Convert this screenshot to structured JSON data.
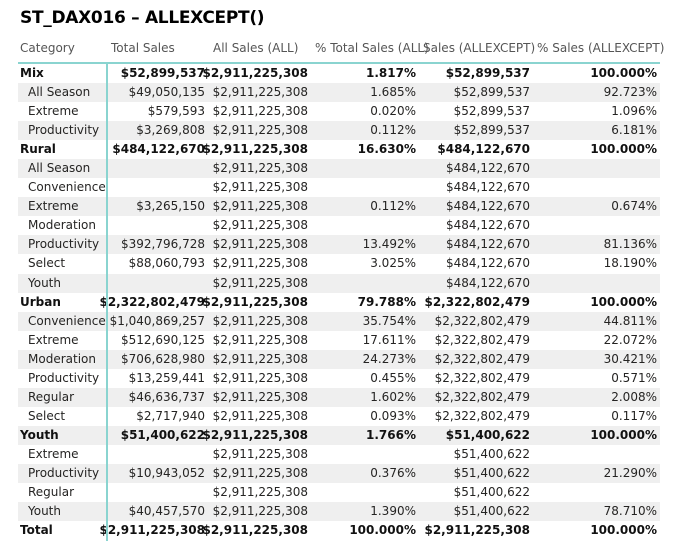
{
  "title": "ST_DAX016 – ALLEXCEPT()",
  "headers": [
    "Category",
    "Total Sales",
    "All Sales (ALL)",
    "% Total Sales (ALL)",
    "Sales (ALLEXCEPT)",
    "% Sales (ALLEXCEPT)"
  ],
  "accent_color": "#8ad4d0",
  "rows": [
    {
      "level": 0,
      "cells": [
        "Mix",
        "$52,899,537",
        "$2,911,225,308",
        "1.817%",
        "$52,899,537",
        "100.000%"
      ]
    },
    {
      "level": 1,
      "cells": [
        "All Season",
        "$49,050,135",
        "$2,911,225,308",
        "1.685%",
        "$52,899,537",
        "92.723%"
      ]
    },
    {
      "level": 1,
      "cells": [
        "Extreme",
        "$579,593",
        "$2,911,225,308",
        "0.020%",
        "$52,899,537",
        "1.096%"
      ]
    },
    {
      "level": 1,
      "cells": [
        "Productivity",
        "$3,269,808",
        "$2,911,225,308",
        "0.112%",
        "$52,899,537",
        "6.181%"
      ]
    },
    {
      "level": 0,
      "cells": [
        "Rural",
        "$484,122,670",
        "$2,911,225,308",
        "16.630%",
        "$484,122,670",
        "100.000%"
      ]
    },
    {
      "level": 1,
      "cells": [
        "All Season",
        "",
        "$2,911,225,308",
        "",
        "$484,122,670",
        ""
      ]
    },
    {
      "level": 1,
      "cells": [
        "Convenience",
        "",
        "$2,911,225,308",
        "",
        "$484,122,670",
        ""
      ]
    },
    {
      "level": 1,
      "cells": [
        "Extreme",
        "$3,265,150",
        "$2,911,225,308",
        "0.112%",
        "$484,122,670",
        "0.674%"
      ]
    },
    {
      "level": 1,
      "cells": [
        "Moderation",
        "",
        "$2,911,225,308",
        "",
        "$484,122,670",
        ""
      ]
    },
    {
      "level": 1,
      "cells": [
        "Productivity",
        "$392,796,728",
        "$2,911,225,308",
        "13.492%",
        "$484,122,670",
        "81.136%"
      ]
    },
    {
      "level": 1,
      "cells": [
        "Select",
        "$88,060,793",
        "$2,911,225,308",
        "3.025%",
        "$484,122,670",
        "18.190%"
      ]
    },
    {
      "level": 1,
      "cells": [
        "Youth",
        "",
        "$2,911,225,308",
        "",
        "$484,122,670",
        ""
      ]
    },
    {
      "level": 0,
      "cells": [
        "Urban",
        "$2,322,802,479",
        "$2,911,225,308",
        "79.788%",
        "$2,322,802,479",
        "100.000%"
      ]
    },
    {
      "level": 1,
      "cells": [
        "Convenience",
        "$1,040,869,257",
        "$2,911,225,308",
        "35.754%",
        "$2,322,802,479",
        "44.811%"
      ]
    },
    {
      "level": 1,
      "cells": [
        "Extreme",
        "$512,690,125",
        "$2,911,225,308",
        "17.611%",
        "$2,322,802,479",
        "22.072%"
      ]
    },
    {
      "level": 1,
      "cells": [
        "Moderation",
        "$706,628,980",
        "$2,911,225,308",
        "24.273%",
        "$2,322,802,479",
        "30.421%"
      ]
    },
    {
      "level": 1,
      "cells": [
        "Productivity",
        "$13,259,441",
        "$2,911,225,308",
        "0.455%",
        "$2,322,802,479",
        "0.571%"
      ]
    },
    {
      "level": 1,
      "cells": [
        "Regular",
        "$46,636,737",
        "$2,911,225,308",
        "1.602%",
        "$2,322,802,479",
        "2.008%"
      ]
    },
    {
      "level": 1,
      "cells": [
        "Select",
        "$2,717,940",
        "$2,911,225,308",
        "0.093%",
        "$2,322,802,479",
        "0.117%"
      ]
    },
    {
      "level": 0,
      "cells": [
        "Youth",
        "$51,400,622",
        "$2,911,225,308",
        "1.766%",
        "$51,400,622",
        "100.000%"
      ]
    },
    {
      "level": 1,
      "cells": [
        "Extreme",
        "",
        "$2,911,225,308",
        "",
        "$51,400,622",
        ""
      ]
    },
    {
      "level": 1,
      "cells": [
        "Productivity",
        "$10,943,052",
        "$2,911,225,308",
        "0.376%",
        "$51,400,622",
        "21.290%"
      ]
    },
    {
      "level": 1,
      "cells": [
        "Regular",
        "",
        "$2,911,225,308",
        "",
        "$51,400,622",
        ""
      ]
    },
    {
      "level": 1,
      "cells": [
        "Youth",
        "$40,457,570",
        "$2,911,225,308",
        "1.390%",
        "$51,400,622",
        "78.710%"
      ]
    },
    {
      "level": 0,
      "cells": [
        "Total",
        "$2,911,225,308",
        "$2,911,225,308",
        "100.000%",
        "$2,911,225,308",
        "100.000%"
      ]
    }
  ]
}
